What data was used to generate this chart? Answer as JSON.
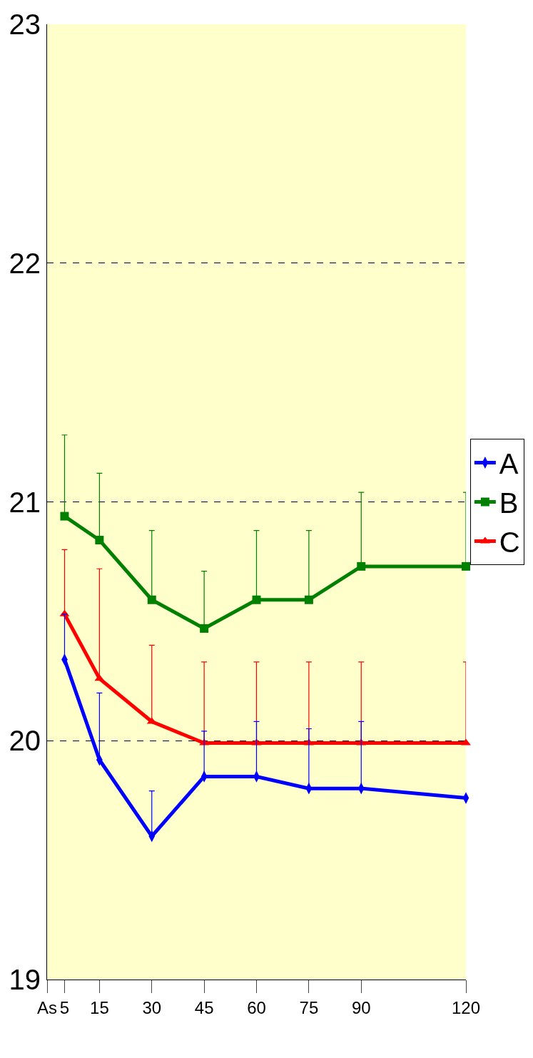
{
  "chart_data": {
    "type": "line",
    "x": [
      5,
      15,
      30,
      45,
      60,
      75,
      90,
      120
    ],
    "xlim": [
      0,
      120
    ],
    "xticks": [
      {
        "value": 0,
        "label": "As"
      },
      5,
      15,
      30,
      45,
      60,
      75,
      90,
      120
    ],
    "ylim": [
      19,
      23
    ],
    "yticks": [
      19,
      20,
      21,
      22,
      23
    ],
    "grid": "y",
    "legend": "right",
    "series": [
      {
        "name": "A",
        "color": "#0000ff",
        "marker": "diamond",
        "values": [
          20.34,
          19.92,
          19.6,
          19.85,
          19.85,
          19.8,
          19.8,
          19.76
        ],
        "errors": [
          [
            20.34,
            20.53
          ],
          [
            19.92,
            20.2
          ],
          [
            19.6,
            19.79
          ],
          [
            19.85,
            20.04
          ],
          [
            19.85,
            20.08
          ],
          [
            19.8,
            20.05
          ],
          [
            19.8,
            20.08
          ],
          null
        ]
      },
      {
        "name": "B",
        "color": "#008000",
        "marker": "square",
        "values": [
          20.94,
          20.84,
          20.59,
          20.47,
          20.59,
          20.59,
          20.73,
          20.73
        ],
        "errors": [
          [
            20.94,
            21.28
          ],
          [
            20.84,
            21.12
          ],
          [
            20.59,
            20.88
          ],
          [
            20.47,
            20.71
          ],
          [
            20.59,
            20.88
          ],
          [
            20.59,
            20.88
          ],
          [
            20.73,
            21.04
          ],
          [
            20.73,
            21.04
          ]
        ]
      },
      {
        "name": "C",
        "color": "#ff0000",
        "marker": "triangle",
        "values": [
          20.53,
          20.26,
          20.08,
          19.99,
          19.99,
          19.99,
          19.99,
          19.99
        ],
        "errors": [
          [
            20.53,
            20.8
          ],
          [
            20.26,
            20.72
          ],
          [
            20.08,
            20.4
          ],
          [
            19.99,
            20.33
          ],
          [
            19.99,
            20.33
          ],
          [
            19.99,
            20.33
          ],
          [
            19.99,
            20.33
          ],
          [
            19.99,
            20.33
          ]
        ]
      }
    ]
  }
}
